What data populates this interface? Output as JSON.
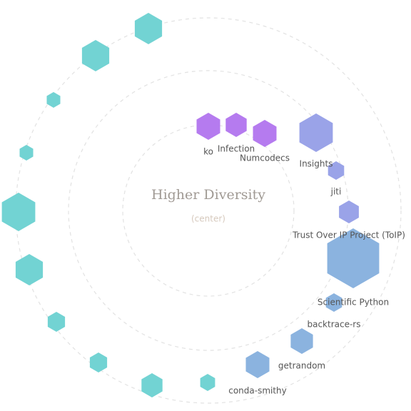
{
  "center": {
    "title": "Higher Diversity",
    "subtitle": "(center)"
  },
  "nodes": [
    {
      "label": "ko"
    },
    {
      "label": "Infection"
    },
    {
      "label": "Numcodecs"
    },
    {
      "label": "Insights"
    },
    {
      "label": "jiti"
    },
    {
      "label": "Trust Over IP Project (ToIP)"
    },
    {
      "label": "Scientific Python"
    },
    {
      "label": "backtrace-rs"
    },
    {
      "label": "getrandom"
    },
    {
      "label": "conda-smithy"
    }
  ]
}
